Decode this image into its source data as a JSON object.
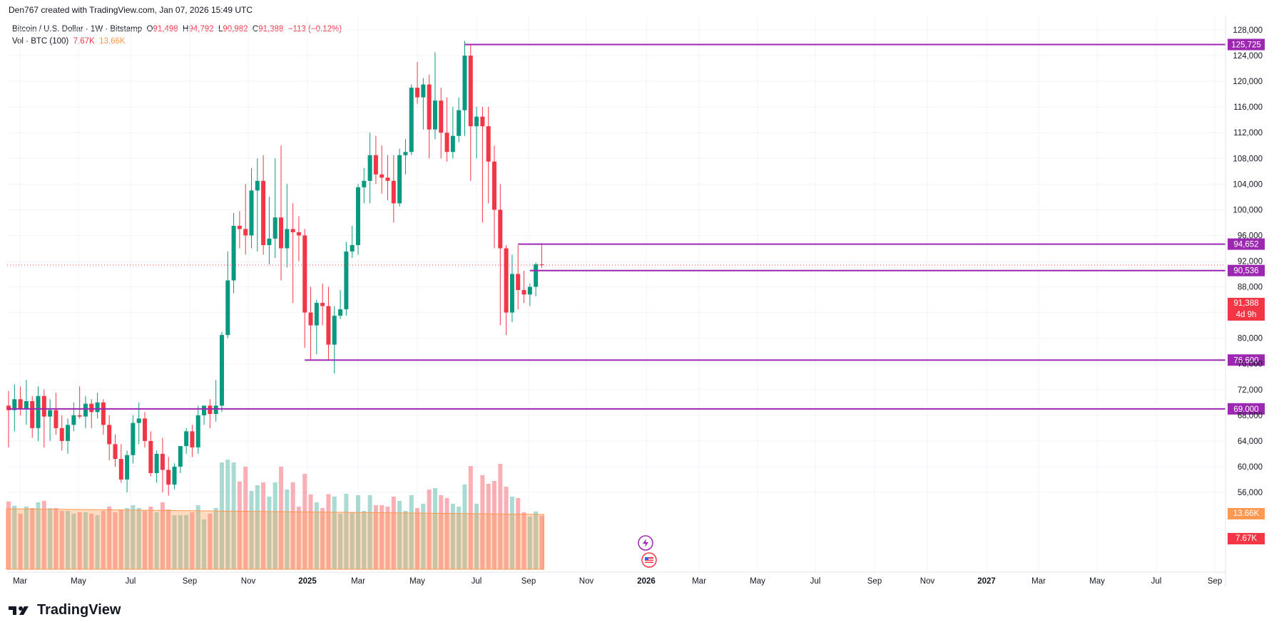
{
  "header": {
    "text": "Den767 created with TradingView.com, Jan 07, 2026 15:49 UTC"
  },
  "legend": {
    "symbol": "Bitcoin / U.S. Dollar · 1W · Bitstamp",
    "o_key": "O",
    "o_val": "91,498",
    "h_key": "H",
    "h_val": "94,792",
    "l_key": "L",
    "l_val": "90,982",
    "c_key": "C",
    "c_val": "91,388",
    "change": "−113 (−0.12%)",
    "vol_label": "Vol · BTC (100)",
    "vol_val": "7.67K",
    "vol_ma_val": "13.66K"
  },
  "brand": {
    "name": "TradingView"
  },
  "colors": {
    "up": "#089981",
    "down": "#f23645",
    "level": "#9c27b0",
    "vol_ma": "#ff9850",
    "grid": "#f0f3fa"
  },
  "price_tags": {
    "last_price": "91,388",
    "countdown": "4d 9h",
    "vol_ma": "13.66K",
    "vol": "7.67K"
  },
  "chart_data": {
    "type": "candlestick",
    "title": "Bitcoin / U.S. Dollar · 1W · Bitstamp",
    "y_axis": {
      "range": [
        54000,
        130000
      ],
      "ticks": [
        56000,
        60000,
        64000,
        68000,
        72000,
        76000,
        80000,
        84000,
        88000,
        92000,
        96000,
        100000,
        104000,
        108000,
        112000,
        116000,
        120000,
        124000,
        128000
      ],
      "tick_labels": [
        "56,000",
        "60,000",
        "64,000",
        "68,000",
        "72,000",
        "76,000",
        "80,000",
        "84,000",
        "88,000",
        "92,000",
        "96,000",
        "100,000",
        "104,000",
        "108,000",
        "112,000",
        "116,000",
        "120,000",
        "124,000",
        "128,000"
      ]
    },
    "x_axis": {
      "labels": [
        "Mar",
        "May",
        "Jul",
        "Sep",
        "Nov",
        "2025",
        "Mar",
        "May",
        "Jul",
        "Sep",
        "Nov",
        "2026",
        "Mar",
        "May",
        "Jul",
        "Sep",
        "Nov",
        "2027",
        "Mar",
        "May",
        "Jul",
        "Sep"
      ],
      "bold": [
        "2025",
        "2026",
        "2027"
      ]
    },
    "horizontal_levels": [
      {
        "value": 125725,
        "label": "125,725",
        "from_bar": 77
      },
      {
        "value": 94652,
        "label": "94,652",
        "from_bar": 86
      },
      {
        "value": 90536,
        "label": "90,536",
        "from_bar": 88
      },
      {
        "value": 76600,
        "label": "76,600",
        "from_bar": 50
      },
      {
        "value": 69000,
        "label": "69,000",
        "from_bar": 0
      }
    ],
    "last_price": 91388,
    "candles": [
      [
        69500,
        71800,
        63000,
        68800
      ],
      [
        68800,
        72800,
        65500,
        70500
      ],
      [
        70500,
        72500,
        68000,
        69000
      ],
      [
        69000,
        73500,
        66500,
        70200
      ],
      [
        70200,
        71000,
        64500,
        66000
      ],
      [
        66000,
        72500,
        64000,
        71000
      ],
      [
        71000,
        72000,
        63000,
        67800
      ],
      [
        67800,
        70500,
        64000,
        68800
      ],
      [
        68800,
        71500,
        65000,
        66000
      ],
      [
        66000,
        68000,
        62500,
        64000
      ],
      [
        64000,
        67500,
        62000,
        66500
      ],
      [
        66500,
        70000,
        65500,
        68000
      ],
      [
        68000,
        72500,
        67500,
        67800
      ],
      [
        67800,
        71000,
        66000,
        69800
      ],
      [
        69800,
        70500,
        66000,
        68500
      ],
      [
        68500,
        71500,
        67500,
        70000
      ],
      [
        70000,
        70500,
        65000,
        66500
      ],
      [
        66500,
        68000,
        61000,
        63500
      ],
      [
        63500,
        65000,
        60000,
        61200
      ],
      [
        61200,
        63500,
        57500,
        58000
      ],
      [
        58000,
        62500,
        56000,
        61800
      ],
      [
        61800,
        68000,
        60500,
        66800
      ],
      [
        66800,
        70000,
        63500,
        67500
      ],
      [
        67500,
        68500,
        63000,
        64000
      ],
      [
        64000,
        65500,
        58500,
        59000
      ],
      [
        59000,
        62500,
        57500,
        62000
      ],
      [
        62000,
        64500,
        56000,
        59500
      ],
      [
        59500,
        61500,
        55500,
        57200
      ],
      [
        57200,
        60500,
        56500,
        60000
      ],
      [
        60000,
        63000,
        59000,
        63200
      ],
      [
        63200,
        66000,
        62000,
        65500
      ],
      [
        65500,
        66500,
        61500,
        63000
      ],
      [
        63000,
        69500,
        62000,
        68000
      ],
      [
        68000,
        69000,
        66500,
        69500
      ],
      [
        69500,
        70500,
        66000,
        68200
      ],
      [
        68200,
        73500,
        67000,
        69500
      ],
      [
        69500,
        81000,
        68500,
        80500
      ],
      [
        80500,
        93500,
        80000,
        89000
      ],
      [
        89000,
        99500,
        87000,
        97500
      ],
      [
        97500,
        99800,
        94000,
        97000
      ],
      [
        97000,
        104000,
        93000,
        96000
      ],
      [
        96000,
        106500,
        94000,
        103000
      ],
      [
        103000,
        108000,
        93500,
        104500
      ],
      [
        104500,
        108500,
        93000,
        94500
      ],
      [
        94500,
        102000,
        91500,
        95500
      ],
      [
        95500,
        108000,
        92500,
        98800
      ],
      [
        98800,
        110000,
        89000,
        94000
      ],
      [
        94000,
        104000,
        91000,
        97000
      ],
      [
        97000,
        101000,
        85500,
        96500
      ],
      [
        96500,
        99000,
        92000,
        96000
      ],
      [
        96000,
        97000,
        78500,
        84000
      ],
      [
        84000,
        88000,
        76700,
        82000
      ],
      [
        82000,
        86000,
        77500,
        85500
      ],
      [
        85500,
        88500,
        82000,
        85000
      ],
      [
        85000,
        88000,
        76600,
        79000
      ],
      [
        79000,
        85000,
        74500,
        83500
      ],
      [
        83500,
        87500,
        83000,
        84500
      ],
      [
        84500,
        95000,
        83500,
        93500
      ],
      [
        93500,
        97500,
        92500,
        94500
      ],
      [
        94500,
        104000,
        93000,
        103500
      ],
      [
        103500,
        106500,
        101000,
        104500
      ],
      [
        104500,
        112000,
        101000,
        108500
      ],
      [
        108500,
        111500,
        104000,
        105500
      ],
      [
        105500,
        110000,
        102500,
        105000
      ],
      [
        105000,
        108500,
        101500,
        104500
      ],
      [
        104500,
        108500,
        98000,
        101000
      ],
      [
        101000,
        109500,
        100500,
        108500
      ],
      [
        108500,
        111000,
        105500,
        109000
      ],
      [
        109000,
        119500,
        108500,
        119000
      ],
      [
        119000,
        123000,
        116500,
        117500
      ],
      [
        117500,
        120500,
        112500,
        119500
      ],
      [
        119500,
        121000,
        108000,
        112500
      ],
      [
        112500,
        124500,
        111000,
        117000
      ],
      [
        117000,
        119000,
        108000,
        112000
      ],
      [
        112000,
        117500,
        107500,
        109000
      ],
      [
        109000,
        116000,
        108000,
        111500
      ],
      [
        111500,
        117500,
        110500,
        115500
      ],
      [
        115500,
        126300,
        111500,
        124000
      ],
      [
        124000,
        125700,
        104500,
        113000
      ],
      [
        113000,
        116000,
        108000,
        114500
      ],
      [
        114500,
        116000,
        98000,
        113000
      ],
      [
        113000,
        116000,
        101000,
        107500
      ],
      [
        107500,
        110000,
        94000,
        100000
      ],
      [
        100000,
        104000,
        82000,
        94000
      ],
      [
        94000,
        94500,
        80500,
        84000
      ],
      [
        84000,
        93000,
        82500,
        90000
      ],
      [
        90000,
        94500,
        84500,
        87500
      ],
      [
        87500,
        90500,
        85500,
        86800
      ],
      [
        86800,
        88500,
        85000,
        88000
      ],
      [
        88000,
        91800,
        86500,
        91500
      ],
      [
        91498,
        94792,
        90982,
        91388
      ]
    ],
    "volume_ma_label": "13.66K",
    "volume_label": "7.67K"
  }
}
